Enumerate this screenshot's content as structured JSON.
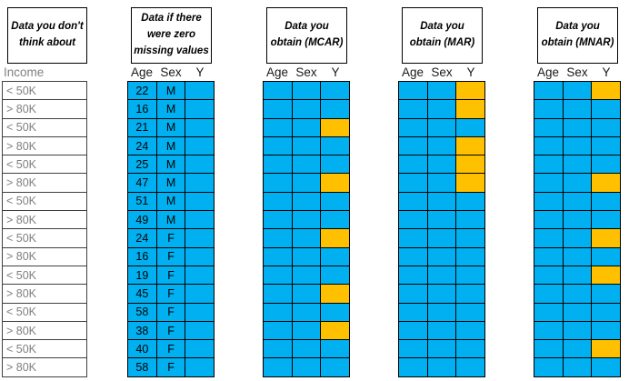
{
  "colors": {
    "observed_cell_blue": "#00B0F0",
    "missing_cell_orange": "#FFC000",
    "income_text_gray": "#808080",
    "income_border_gray": "#404040",
    "grid_border_black": "#000000",
    "cell_text_black": "#000000",
    "background": "#FFFFFF"
  },
  "rows_count": 16,
  "income_panel": {
    "title": "Data you don't think about",
    "column_header": "Income",
    "values": [
      "< 50K",
      "> 80K",
      "< 50K",
      "> 80K",
      "< 50K",
      "> 80K",
      "< 50K",
      "> 80K",
      "< 50K",
      "> 80K",
      "< 50K",
      "> 80K",
      "< 50K",
      "> 80K",
      "< 50K",
      "> 80K"
    ]
  },
  "complete_panel": {
    "title": "Data if there were zero missing values",
    "columns": [
      "Age",
      "Sex",
      "Y"
    ],
    "age_values": [
      "22",
      "16",
      "21",
      "24",
      "25",
      "47",
      "51",
      "49",
      "24",
      "16",
      "19",
      "45",
      "58",
      "38",
      "40",
      "58"
    ],
    "sex_values": [
      "M",
      "M",
      "M",
      "M",
      "M",
      "M",
      "M",
      "M",
      "F",
      "F",
      "F",
      "F",
      "F",
      "F",
      "F",
      "F"
    ],
    "missing_y_rows": []
  },
  "mcar_panel": {
    "title": "Data you obtain (MCAR)",
    "columns": [
      "Age",
      "Sex",
      "Y"
    ],
    "missing_y_rows": [
      3,
      6,
      9,
      12,
      14
    ]
  },
  "mar_panel": {
    "title": "Data you obtain (MAR)",
    "columns": [
      "Age",
      "Sex",
      "Y"
    ],
    "missing_y_rows": [
      1,
      2,
      4,
      5,
      6
    ]
  },
  "mnar_panel": {
    "title": "Data you obtain (MNAR)",
    "columns": [
      "Age",
      "Sex",
      "Y"
    ],
    "missing_y_rows": [
      1,
      6,
      9,
      11,
      15
    ]
  }
}
